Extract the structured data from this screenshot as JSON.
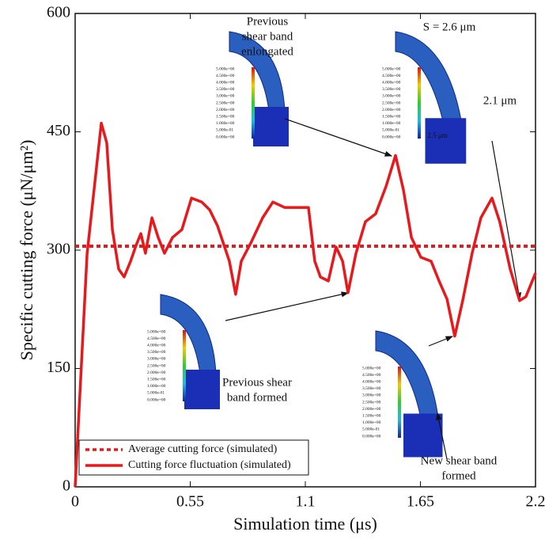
{
  "chart_data": {
    "type": "line",
    "xlabel": "Simulation time (μs)",
    "ylabel": "Specific cutting force (μN/μm²)",
    "xlim": [
      0,
      2.2
    ],
    "xticks": [
      0,
      0.55,
      1.1,
      1.65,
      2.2
    ],
    "ylim": [
      0,
      600
    ],
    "yticks": [
      0,
      150,
      300,
      450,
      600
    ],
    "legend_position": "lower left",
    "series": [
      {
        "name": "Average cutting force (simulated)",
        "color": "#e8191c",
        "style": "dotted",
        "x": [
          0,
          2.2
        ],
        "values": [
          305,
          305
        ]
      },
      {
        "name": "Cutting force fluctuation (simulated)",
        "color": "#e8191c",
        "style": "solid",
        "x": [
          0,
          0.057,
          0.125,
          0.151,
          0.178,
          0.208,
          0.234,
          0.265,
          0.291,
          0.314,
          0.336,
          0.367,
          0.397,
          0.427,
          0.465,
          0.51,
          0.556,
          0.605,
          0.643,
          0.68,
          0.737,
          0.767,
          0.794,
          0.843,
          0.896,
          0.945,
          1.002,
          1.058,
          1.115,
          1.145,
          1.172,
          1.21,
          1.247,
          1.278,
          1.304,
          1.342,
          1.387,
          1.436,
          1.486,
          1.531,
          1.569,
          1.607,
          1.652,
          1.701,
          1.739,
          1.777,
          1.814,
          1.852,
          1.897,
          1.939,
          1.992,
          2.029,
          2.079,
          2.124,
          2.154,
          2.2
        ],
        "values": [
          0,
          295,
          461,
          436,
          326,
          276,
          266,
          286,
          306,
          321,
          296,
          341,
          316,
          296,
          316,
          326,
          366,
          361,
          351,
          331,
          286,
          244,
          286,
          311,
          341,
          361,
          354,
          354,
          354,
          286,
          266,
          261,
          304,
          286,
          246,
          296,
          336,
          346,
          381,
          420,
          376,
          316,
          291,
          286,
          261,
          238,
          191,
          236,
          296,
          341,
          366,
          336,
          276,
          236,
          241,
          271
        ]
      }
    ],
    "annotations": [
      {
        "lines": [
          "Previous",
          "shear band",
          "enlongated"
        ]
      },
      {
        "lines": [
          "Previous shear",
          "band formed"
        ]
      },
      {
        "lines": [
          "New shear band",
          "formed"
        ]
      }
    ],
    "inset_labels": [
      "S = 2.6 μm",
      "2.1 μm",
      "2.5 μm"
    ],
    "colorbar_labels": [
      "5.000e+00",
      "4.500e+00",
      "4.000e+00",
      "3.500e+00",
      "3.000e+00",
      "2.500e+00",
      "2.000e+00",
      "1.500e+00",
      "1.000e+00",
      "5.000e-01",
      "0.000e+00"
    ]
  }
}
